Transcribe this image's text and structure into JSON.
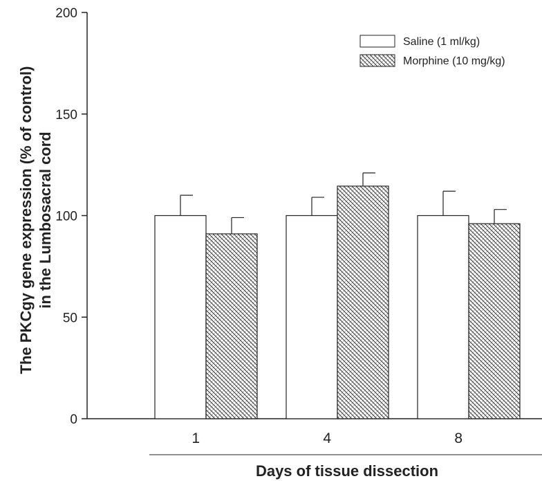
{
  "chart_data": {
    "type": "bar",
    "categories": [
      "1",
      "4",
      "8"
    ],
    "series": [
      {
        "name": "Saline (1 ml/kg)",
        "values": [
          100,
          100,
          100
        ],
        "errors": [
          10,
          9,
          12
        ],
        "fill": "#ffffff",
        "pattern": "none"
      },
      {
        "name": "Morphine (10 mg/kg)",
        "values": [
          91,
          114.5,
          96
        ],
        "errors": [
          8,
          6.5,
          7
        ],
        "fill": "#ffffff",
        "pattern": "crosshatch"
      }
    ],
    "xlabel": "Days of tissue dissection",
    "ylabel_line1": "The PKCgγ gene expression  (% of control)",
    "ylabel_line2": "in the Lumbosacral cord",
    "ylim": [
      0,
      200
    ],
    "yticks": [
      "0",
      "50",
      "100",
      "150",
      "200"
    ],
    "legend_position": "top-right",
    "grid": false
  }
}
